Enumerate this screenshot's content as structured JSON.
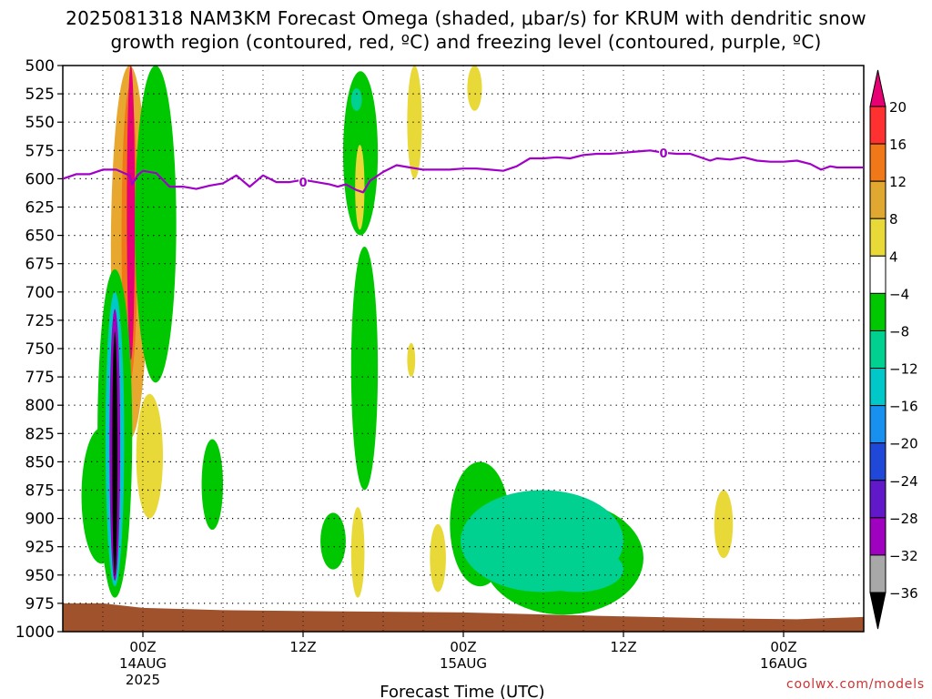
{
  "chart_data": {
    "type": "heatmap",
    "title_line1": "2025081318 NAM3KM Forecast Omega (shaded, μbar/s) for KRUM with dendritic snow",
    "title_line2": "growth region (contoured, red, ºC) and freezing level (contoured, purple, ºC)",
    "xlabel": "Forecast Time (UTC)",
    "x_ticks": [
      {
        "hours": 6,
        "label": "00Z",
        "sub1": "14AUG",
        "sub2": "2025"
      },
      {
        "hours": 18,
        "label": "12Z",
        "sub1": "",
        "sub2": ""
      },
      {
        "hours": 30,
        "label": "00Z",
        "sub1": "15AUG",
        "sub2": ""
      },
      {
        "hours": 42,
        "label": "12Z",
        "sub1": "",
        "sub2": ""
      },
      {
        "hours": 54,
        "label": "00Z",
        "sub1": "16AUG",
        "sub2": ""
      }
    ],
    "xlim_hours": [
      0,
      60
    ],
    "y_levels": [
      500,
      525,
      550,
      575,
      600,
      625,
      650,
      675,
      700,
      725,
      750,
      775,
      800,
      825,
      850,
      875,
      900,
      925,
      950,
      975,
      1000
    ],
    "ylim_hpa": [
      500,
      1000
    ],
    "colorbar": {
      "levels": [
        "20",
        "16",
        "12",
        "8",
        "4",
        "−4",
        "−8",
        "−12",
        "−16",
        "−20",
        "−24",
        "−28",
        "−32",
        "−36"
      ],
      "colors": [
        "#e60073",
        "#ff3030",
        "#f07818",
        "#e0a830",
        "#e8d838",
        "#ffffff",
        "#00c800",
        "#00d090",
        "#00c8c8",
        "#1890f0",
        "#2048d8",
        "#6018c8",
        "#a000c0",
        "#a8a8a8",
        "#000000"
      ]
    },
    "freezing_level": {
      "label": "0",
      "color": "#a000c8",
      "points": [
        [
          0,
          600
        ],
        [
          1,
          596
        ],
        [
          2,
          596
        ],
        [
          3,
          592
        ],
        [
          4,
          592
        ],
        [
          5,
          597
        ],
        [
          5.2,
          605
        ],
        [
          5.6,
          597
        ],
        [
          6,
          593
        ],
        [
          7,
          595
        ],
        [
          8,
          607
        ],
        [
          9,
          607
        ],
        [
          10,
          609
        ],
        [
          11,
          606
        ],
        [
          12,
          604
        ],
        [
          13,
          597
        ],
        [
          14,
          607
        ],
        [
          15,
          597
        ],
        [
          16,
          603
        ],
        [
          17,
          603
        ],
        [
          18,
          601
        ],
        [
          19,
          603
        ],
        [
          20,
          605
        ],
        [
          20.6,
          607
        ],
        [
          21.2,
          605
        ],
        [
          22,
          610
        ],
        [
          22.5,
          612
        ],
        [
          23,
          602
        ],
        [
          24,
          594
        ],
        [
          25,
          588
        ],
        [
          26,
          590
        ],
        [
          27,
          592
        ],
        [
          28,
          592
        ],
        [
          29,
          592
        ],
        [
          30,
          591
        ],
        [
          31,
          591
        ],
        [
          32,
          592
        ],
        [
          33,
          593
        ],
        [
          34,
          589
        ],
        [
          35,
          582
        ],
        [
          36,
          582
        ],
        [
          37,
          581
        ],
        [
          38,
          582
        ],
        [
          39,
          579
        ],
        [
          40,
          578
        ],
        [
          41,
          578
        ],
        [
          42,
          577
        ],
        [
          43,
          576
        ],
        [
          44,
          575
        ],
        [
          45,
          577
        ],
        [
          46,
          578
        ],
        [
          47,
          578
        ],
        [
          48,
          582
        ],
        [
          48.5,
          584
        ],
        [
          49,
          582
        ],
        [
          50,
          583
        ],
        [
          51,
          581
        ],
        [
          52,
          584
        ],
        [
          53,
          585
        ],
        [
          54,
          585
        ],
        [
          55,
          584
        ],
        [
          56,
          587
        ],
        [
          56.8,
          592
        ],
        [
          57.5,
          589
        ],
        [
          58,
          590
        ],
        [
          59,
          590
        ],
        [
          60,
          590
        ]
      ]
    },
    "omega_features": [
      {
        "band": "8",
        "hours": [
          3.6,
          6.4
        ],
        "hpa": [
          500,
          830
        ]
      },
      {
        "band": "12",
        "hours": [
          4.4,
          5.6
        ],
        "hpa": [
          520,
          780
        ]
      },
      {
        "band": "20",
        "hours": [
          4.8,
          5.4
        ],
        "hpa": [
          500,
          760
        ]
      },
      {
        "band": "-8",
        "hours": [
          5.4,
          8.5
        ],
        "hpa": [
          500,
          780
        ]
      },
      {
        "band": "-8",
        "hours": [
          1.4,
          4.4
        ],
        "hpa": [
          820,
          940
        ]
      },
      {
        "band": "-8",
        "hours": [
          2.6,
          5.2
        ],
        "hpa": [
          680,
          970
        ]
      },
      {
        "band": "-16",
        "hours": [
          3.2,
          4.6
        ],
        "hpa": [
          700,
          960
        ]
      },
      {
        "band": "-28",
        "hours": [
          3.5,
          4.3
        ],
        "hpa": [
          715,
          955
        ]
      },
      {
        "band": "-36",
        "hours": [
          3.7,
          4.1
        ],
        "hpa": [
          735,
          950
        ]
      },
      {
        "band": "4",
        "hours": [
          5.5,
          7.5
        ],
        "hpa": [
          790,
          900
        ]
      },
      {
        "band": "-8",
        "hours": [
          10.4,
          12.0
        ],
        "hpa": [
          830,
          910
        ]
      },
      {
        "band": "-8",
        "hours": [
          21.0,
          23.6
        ],
        "hpa": [
          505,
          650
        ]
      },
      {
        "band": "-12",
        "hours": [
          21.6,
          22.4
        ],
        "hpa": [
          520,
          540
        ]
      },
      {
        "band": "4",
        "hours": [
          21.9,
          22.6
        ],
        "hpa": [
          570,
          645
        ]
      },
      {
        "band": "-8",
        "hours": [
          21.6,
          23.6
        ],
        "hpa": [
          660,
          875
        ]
      },
      {
        "band": "-8",
        "hours": [
          19.3,
          21.2
        ],
        "hpa": [
          895,
          945
        ]
      },
      {
        "band": "4",
        "hours": [
          21.6,
          22.6
        ],
        "hpa": [
          890,
          970
        ]
      },
      {
        "band": "4",
        "hours": [
          25.8,
          26.9
        ],
        "hpa": [
          500,
          600
        ]
      },
      {
        "band": "4",
        "hours": [
          30.3,
          31.4
        ],
        "hpa": [
          500,
          540
        ]
      },
      {
        "band": "-8",
        "hours": [
          29.0,
          33.5
        ],
        "hpa": [
          850,
          960
        ]
      },
      {
        "band": "-8",
        "hours": [
          31.5,
          43.5
        ],
        "hpa": [
          885,
          985
        ]
      },
      {
        "band": "-12",
        "hours": [
          29.8,
          42.0
        ],
        "hpa": [
          875,
          965
        ]
      },
      {
        "band": "-12",
        "hours": [
          35.0,
          42.0
        ],
        "hpa": [
          925,
          965
        ]
      },
      {
        "band": "4",
        "hours": [
          27.5,
          28.7
        ],
        "hpa": [
          905,
          965
        ]
      },
      {
        "band": "4",
        "hours": [
          48.8,
          50.2
        ],
        "hpa": [
          875,
          935
        ]
      },
      {
        "band": "4",
        "hours": [
          25.8,
          26.4
        ],
        "hpa": [
          745,
          775
        ]
      }
    ],
    "terrain_color": "#a0522d",
    "watermark": "coolwx.com/models"
  }
}
